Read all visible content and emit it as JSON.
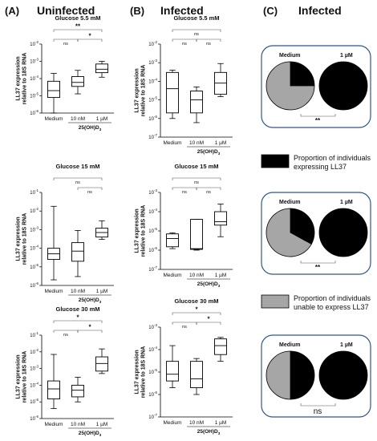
{
  "panels": {
    "A": {
      "letter": "(A)",
      "title": "Uninfected"
    },
    "B": {
      "letter": "(B)",
      "title": "Infected"
    },
    "C": {
      "letter": "(C)",
      "title": "Infected"
    }
  },
  "common": {
    "ylabel_line1": "LL37 expression",
    "ylabel_line2": "relative to 18S RNA",
    "group_label": "25(OH)D",
    "group_sub": "3",
    "yticks": [
      {
        "b": "10",
        "e": "-7"
      },
      {
        "b": "10",
        "e": "-6"
      },
      {
        "b": "10",
        "e": "-5"
      },
      {
        "b": "10",
        "e": "-4"
      },
      {
        "b": "10",
        "e": "-3"
      },
      {
        "b": "10",
        "e": "-2"
      },
      {
        "b": "10",
        "e": "-1"
      }
    ]
  },
  "chart_data": [
    {
      "id": "A1",
      "type": "box",
      "title": "Glucose 5.5 mM",
      "log": true,
      "ylim": [
        -6,
        -2
      ],
      "categories": [
        "Medium",
        "10 nM",
        "1 µM"
      ],
      "boxes": [
        {
          "min": 1e-06,
          "q1": 8e-06,
          "median": 2e-05,
          "q3": 7e-05,
          "max": 0.0002
        },
        {
          "min": 1.3e-05,
          "q1": 3.5e-05,
          "median": 6e-05,
          "q3": 0.00013,
          "max": 0.0003
        },
        {
          "min": 0.00012,
          "q1": 0.00022,
          "median": 0.00035,
          "q3": 0.0007,
          "max": 0.001
        }
      ],
      "brackets": [
        {
          "from": 0,
          "to": 2,
          "label": "**",
          "level": 1
        },
        {
          "from": 0,
          "to": 1,
          "label": "ns",
          "level": 0
        },
        {
          "from": 1,
          "to": 2,
          "label": "*",
          "level": 0
        }
      ]
    },
    {
      "id": "A2",
      "type": "box",
      "title": "Glucose 15 mM",
      "log": true,
      "ylim": [
        -6,
        -1
      ],
      "categories": [
        "Medium",
        "10 nM",
        "1 µM"
      ],
      "boxes": [
        {
          "min": 2e-06,
          "q1": 2.5e-05,
          "median": 5e-05,
          "q3": 0.0001,
          "max": 0.018
        },
        {
          "min": 3e-06,
          "q1": 2e-05,
          "median": 7e-05,
          "q3": 0.0002,
          "max": 0.0009
        },
        {
          "min": 0.0003,
          "q1": 0.0004,
          "median": 0.0007,
          "q3": 0.0012,
          "max": 0.003
        }
      ],
      "brackets": [
        {
          "from": 0,
          "to": 2,
          "label": "ns",
          "level": 1
        },
        {
          "from": 1,
          "to": 2,
          "label": "ns",
          "level": 0
        }
      ]
    },
    {
      "id": "A3",
      "type": "box",
      "title": "Glucose 30 mM",
      "log": true,
      "ylim": [
        -6,
        -1
      ],
      "categories": [
        "Medium",
        "10 nM",
        "1 µM"
      ],
      "boxes": [
        {
          "min": 4e-06,
          "q1": 1.5e-05,
          "median": 6e-05,
          "q3": 0.00018,
          "max": 0.007
        },
        {
          "min": 1e-05,
          "q1": 2e-05,
          "median": 5e-05,
          "q3": 0.0001,
          "max": 0.0003
        },
        {
          "min": 0.0005,
          "q1": 0.0007,
          "median": 0.002,
          "q3": 0.005,
          "max": 0.015
        }
      ],
      "brackets": [
        {
          "from": 0,
          "to": 2,
          "label": "*",
          "level": 1
        },
        {
          "from": 0,
          "to": 1,
          "label": "ns",
          "level": 0
        },
        {
          "from": 1,
          "to": 2,
          "label": "*",
          "level": 0
        }
      ]
    },
    {
      "id": "B1",
      "type": "box",
      "title": "Glucose 5.5 mM",
      "log": true,
      "ylim": [
        -7,
        -2
      ],
      "categories": [
        "Medium",
        "10 nM",
        "1 µM"
      ],
      "boxes": [
        {
          "min": 1e-06,
          "q1": 2e-06,
          "median": 4e-05,
          "q3": 0.0003,
          "max": 0.0004
        },
        {
          "min": 6e-07,
          "q1": 2e-06,
          "median": 1e-05,
          "q3": 3e-05,
          "max": 5e-05
        },
        {
          "min": 1.5e-05,
          "q1": 2e-05,
          "median": 8e-05,
          "q3": 0.0003,
          "max": 0.0009
        }
      ],
      "brackets": [
        {
          "from": 0,
          "to": 2,
          "label": "ns",
          "level": 1
        },
        {
          "from": 0,
          "to": 1,
          "label": "ns",
          "level": 0
        },
        {
          "from": 1,
          "to": 2,
          "label": "ns",
          "level": 0
        }
      ]
    },
    {
      "id": "B2",
      "type": "box",
      "title": "Glucose 15 mM",
      "log": true,
      "ylim": [
        -7,
        -3
      ],
      "categories": [
        "Medium",
        "10 nM",
        "1 µM"
      ],
      "boxes": [
        {
          "min": 1.2e-06,
          "q1": 1.5e-06,
          "median": 4e-06,
          "q3": 7e-06,
          "max": 8e-06
        },
        {
          "min": 1e-06,
          "q1": 1.1e-06,
          "median": 1.2e-06,
          "q3": 4e-05,
          "max": 4e-05
        },
        {
          "min": 5e-06,
          "q1": 2e-05,
          "median": 3e-05,
          "q3": 0.0001,
          "max": 0.00025
        }
      ],
      "brackets": [
        {
          "from": 0,
          "to": 2,
          "label": "ns",
          "level": 1
        },
        {
          "from": 0,
          "to": 1,
          "label": "ns",
          "level": 0
        },
        {
          "from": 1,
          "to": 2,
          "label": "ns",
          "level": 0
        }
      ]
    },
    {
      "id": "B3",
      "type": "box",
      "title": "Glucose 30 mM",
      "log": true,
      "ylim": [
        -7,
        -3
      ],
      "categories": [
        "Medium",
        "10 nM",
        "1 µM"
      ],
      "boxes": [
        {
          "min": 2e-06,
          "q1": 4e-06,
          "median": 8e-06,
          "q3": 3e-05,
          "max": 0.00015
        },
        {
          "min": 1e-06,
          "q1": 2e-06,
          "median": 5e-06,
          "q3": 3e-05,
          "max": 4e-05
        },
        {
          "min": 3e-05,
          "q1": 6e-05,
          "median": 0.00015,
          "q3": 0.0003,
          "max": 0.00035
        }
      ],
      "brackets": [
        {
          "from": 0,
          "to": 2,
          "label": "*",
          "level": 1
        },
        {
          "from": 0,
          "to": 1,
          "label": "ns",
          "level": 0
        },
        {
          "from": 1,
          "to": 2,
          "label": "*",
          "level": 0
        }
      ]
    },
    {
      "id": "C1",
      "type": "pie",
      "labels": [
        "Medium",
        "1 µM"
      ],
      "pies": [
        {
          "expressing": 0.25,
          "unable": 0.75
        },
        {
          "expressing": 1.0,
          "unable": 0.0
        }
      ],
      "significance": "**"
    },
    {
      "id": "C2",
      "type": "pie",
      "labels": [
        "Medium",
        "1 µM"
      ],
      "pies": [
        {
          "expressing": 0.33,
          "unable": 0.67
        },
        {
          "expressing": 1.0,
          "unable": 0.0
        }
      ],
      "significance": "**"
    },
    {
      "id": "C3",
      "type": "pie",
      "labels": [
        "Medium",
        "1 µM"
      ],
      "pies": [
        {
          "expressing": 0.5,
          "unable": 0.5
        },
        {
          "expressing": 1.0,
          "unable": 0.0
        }
      ],
      "significance": "ns"
    }
  ],
  "legend": [
    {
      "label": "Proportion of individuals expressing LL37",
      "line1": "Proportion of individuals",
      "line2": "expressing LL37",
      "color": "#000000"
    },
    {
      "label": "Proportion of individuals unable to express LL37",
      "line1": "Proportion of individuals",
      "line2": "unable to express LL37",
      "color": "#a6a6a6"
    }
  ],
  "colors": {
    "expressing": "#000000",
    "unable": "#a6a6a6",
    "panel_border": "#2f5597"
  }
}
